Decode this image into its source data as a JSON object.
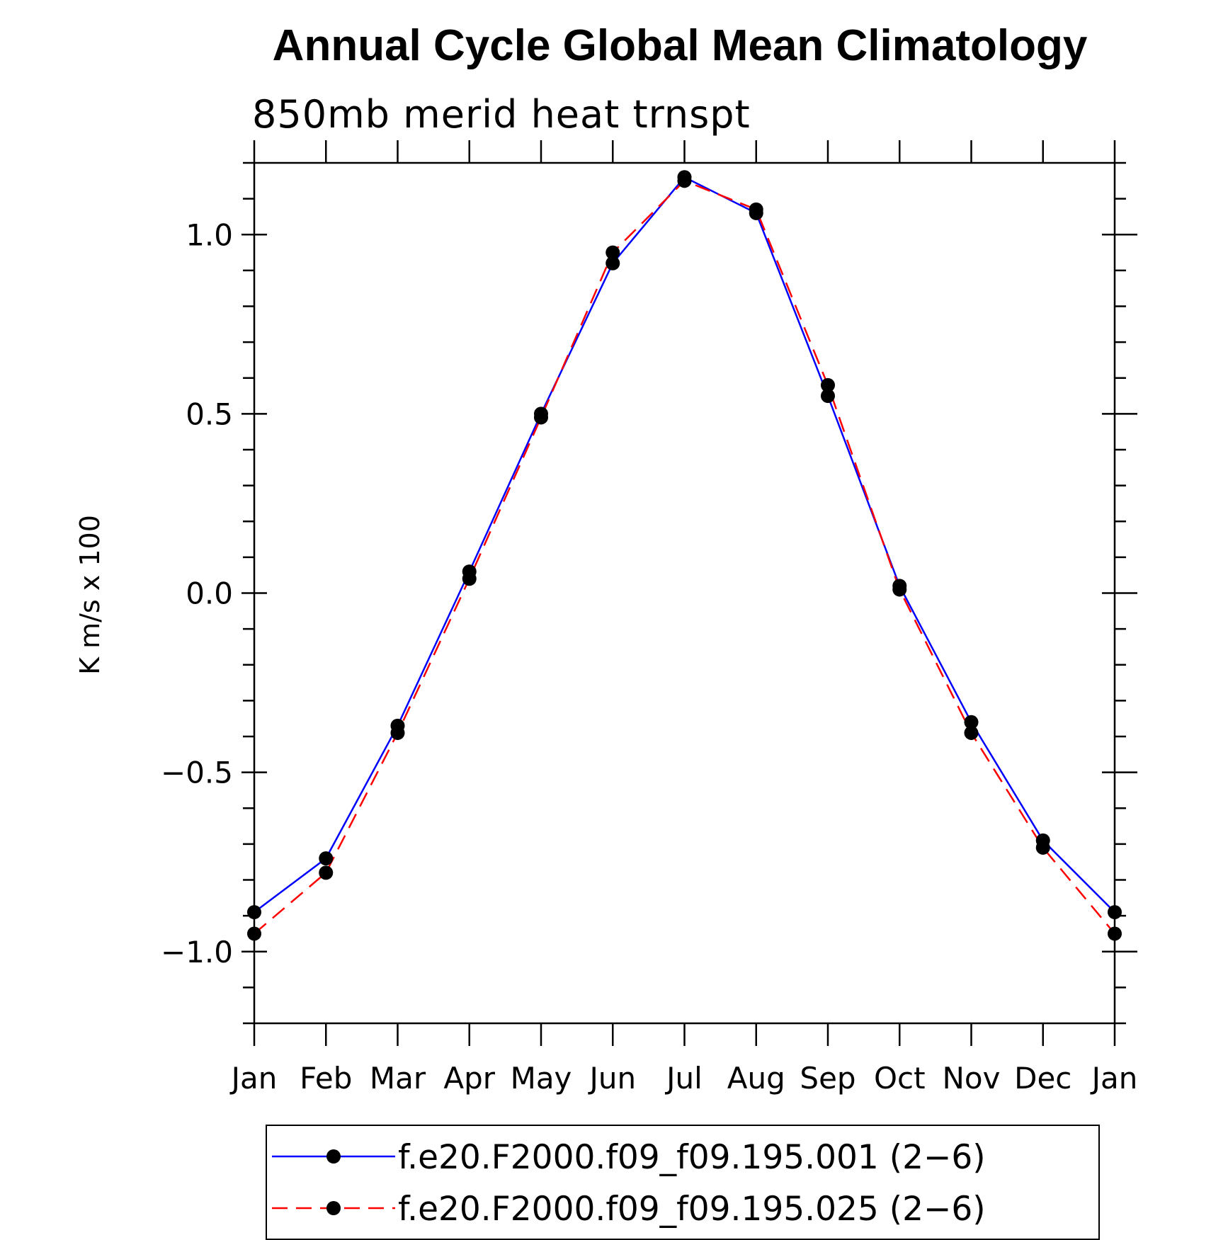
{
  "chart_data": {
    "type": "line",
    "title": "Annual Cycle Global Mean Climatology",
    "subtitle": "850mb merid heat trnspt",
    "ylabel": "K m/s x 100",
    "xlabel": "",
    "categories": [
      "Jan",
      "Feb",
      "Mar",
      "Apr",
      "May",
      "Jun",
      "Jul",
      "Aug",
      "Sep",
      "Oct",
      "Nov",
      "Dec",
      "Jan"
    ],
    "ylim": [
      -1.2,
      1.2
    ],
    "yticks": [
      {
        "value": 1.0,
        "label": "1.0"
      },
      {
        "value": 0.5,
        "label": "0.5"
      },
      {
        "value": 0.0,
        "label": "0.0"
      },
      {
        "value": -0.5,
        "label": "−0.5"
      },
      {
        "value": -1.0,
        "label": "−1.0"
      }
    ],
    "grid": false,
    "legend_position": "bottom",
    "series": [
      {
        "name": "f.e20.F2000.f09_f09.195.001 (2−6)",
        "color": "#0000ff",
        "style": "solid",
        "marker": "filled-circle",
        "values": [
          -0.89,
          -0.74,
          -0.37,
          0.06,
          0.5,
          0.92,
          1.16,
          1.06,
          0.55,
          0.02,
          -0.36,
          -0.69,
          -0.89
        ]
      },
      {
        "name": "f.e20.F2000.f09_f09.195.025 (2−6)",
        "color": "#ff0000",
        "style": "dashed",
        "marker": "filled-circle",
        "values": [
          -0.95,
          -0.78,
          -0.39,
          0.04,
          0.49,
          0.95,
          1.15,
          1.07,
          0.58,
          0.01,
          -0.39,
          -0.71,
          -0.95
        ]
      }
    ]
  }
}
